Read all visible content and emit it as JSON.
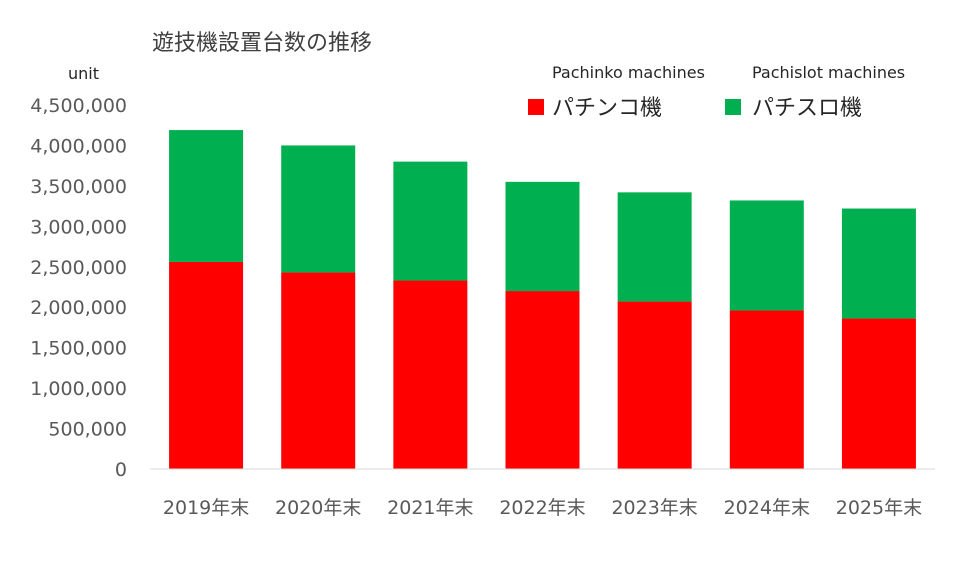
{
  "chart_data": {
    "type": "bar",
    "stacked": true,
    "title": "遊技機設置台数の推移",
    "ylabel": "unit",
    "categories": [
      "2019年末",
      "2020年末",
      "2021年末",
      "2022年末",
      "2023年末",
      "2024年末",
      "2025年末"
    ],
    "series": [
      {
        "name": "パチンコ機",
        "name_en": "Pachinko machines",
        "color": "#ff0000",
        "values": [
          2560000,
          2430000,
          2330000,
          2200000,
          2070000,
          1960000,
          1860000
        ]
      },
      {
        "name": "パチスロ機",
        "name_en": "Pachislot machines",
        "color": "#00b050",
        "values": [
          1630000,
          1570000,
          1470000,
          1350000,
          1350000,
          1360000,
          1360000
        ]
      }
    ],
    "ylim": [
      0,
      4500000
    ],
    "yticks": [
      "0",
      "500,000",
      "1,000,000",
      "1,500,000",
      "2,000,000",
      "2,500,000",
      "3,000,000",
      "3,500,000",
      "4,000,000",
      "4,500,000"
    ],
    "grid": false,
    "legend_position": "top-right"
  }
}
